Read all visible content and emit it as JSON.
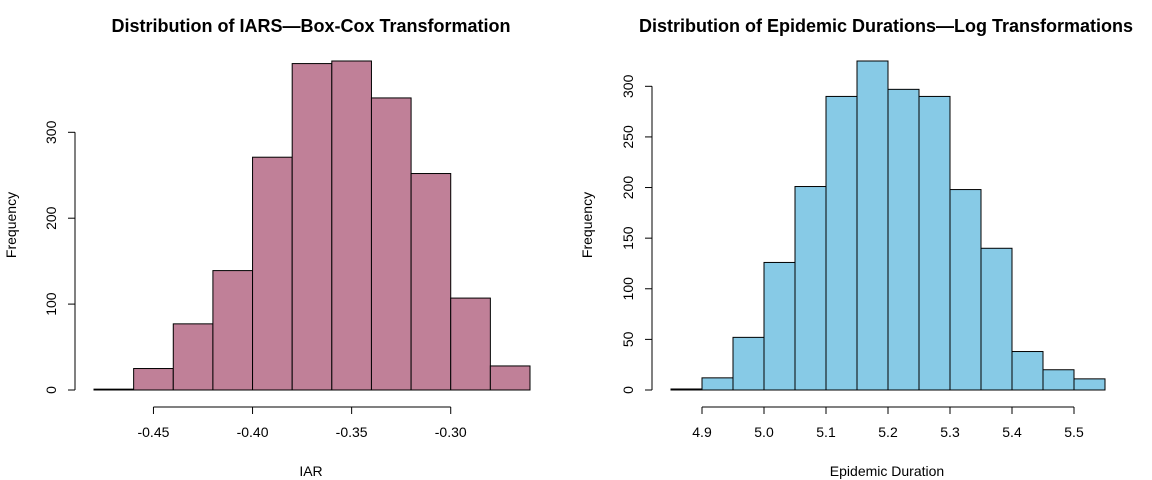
{
  "chart_data": [
    {
      "type": "bar",
      "title": "Distribution of IARS—Box-Cox Transformation",
      "xlabel": "IAR",
      "ylabel": "Frequency",
      "bar_color": "#C08098",
      "bins": [
        {
          "start": -0.48,
          "end": -0.46,
          "count": 1
        },
        {
          "start": -0.46,
          "end": -0.44,
          "count": 25
        },
        {
          "start": -0.44,
          "end": -0.42,
          "count": 77
        },
        {
          "start": -0.42,
          "end": -0.4,
          "count": 139
        },
        {
          "start": -0.4,
          "end": -0.38,
          "count": 271
        },
        {
          "start": -0.38,
          "end": -0.36,
          "count": 380
        },
        {
          "start": -0.36,
          "end": -0.34,
          "count": 383
        },
        {
          "start": -0.34,
          "end": -0.32,
          "count": 340
        },
        {
          "start": -0.32,
          "end": -0.3,
          "count": 252
        },
        {
          "start": -0.3,
          "end": -0.28,
          "count": 107
        },
        {
          "start": -0.28,
          "end": -0.26,
          "count": 28
        }
      ],
      "xlim": [
        -0.48,
        -0.26
      ],
      "ylim": [
        0,
        383
      ],
      "xticks": [
        -0.45,
        -0.4,
        -0.35,
        -0.3
      ],
      "xtick_labels": [
        "-0.45",
        "-0.40",
        "-0.35",
        "-0.30"
      ],
      "yticks": [
        0,
        100,
        200,
        300
      ],
      "ytick_labels": [
        "0",
        "100",
        "200",
        "300"
      ]
    },
    {
      "type": "bar",
      "title": "Distribution of Epidemic Durations—Log Transformations",
      "xlabel": "Epidemic Duration",
      "ylabel": "Frequency",
      "bar_color": "#87CAE6",
      "bins": [
        {
          "start": 4.85,
          "end": 4.9,
          "count": 1
        },
        {
          "start": 4.9,
          "end": 4.95,
          "count": 12
        },
        {
          "start": 4.95,
          "end": 5.0,
          "count": 52
        },
        {
          "start": 5.0,
          "end": 5.05,
          "count": 126
        },
        {
          "start": 5.05,
          "end": 5.1,
          "count": 201
        },
        {
          "start": 5.1,
          "end": 5.15,
          "count": 290
        },
        {
          "start": 5.15,
          "end": 5.2,
          "count": 325
        },
        {
          "start": 5.2,
          "end": 5.25,
          "count": 297
        },
        {
          "start": 5.25,
          "end": 5.3,
          "count": 290
        },
        {
          "start": 5.3,
          "end": 5.35,
          "count": 198
        },
        {
          "start": 5.35,
          "end": 5.4,
          "count": 140
        },
        {
          "start": 5.4,
          "end": 5.45,
          "count": 38
        },
        {
          "start": 5.45,
          "end": 5.5,
          "count": 20
        },
        {
          "start": 5.5,
          "end": 5.55,
          "count": 11
        }
      ],
      "xlim": [
        4.85,
        5.55
      ],
      "ylim": [
        0,
        325
      ],
      "xticks": [
        4.9,
        5.0,
        5.1,
        5.2,
        5.3,
        5.4,
        5.5
      ],
      "xtick_labels": [
        "4.9",
        "5.0",
        "5.1",
        "5.2",
        "5.3",
        "5.4",
        "5.5"
      ],
      "yticks": [
        0,
        50,
        100,
        150,
        200,
        250,
        300
      ],
      "ytick_labels": [
        "0",
        "50",
        "100",
        "150",
        "200",
        "250",
        "300"
      ]
    }
  ]
}
